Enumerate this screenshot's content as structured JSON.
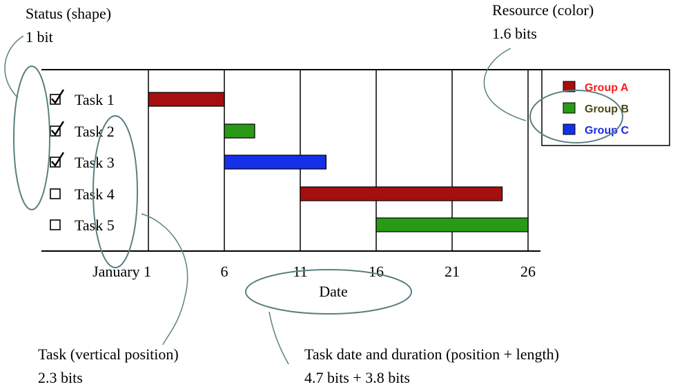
{
  "annotations": {
    "status": {
      "title": "Status (shape)",
      "bits": "1 bit"
    },
    "resource": {
      "title": "Resource (color)",
      "bits": "1.6 bits"
    },
    "task": {
      "title": "Task (vertical position)",
      "bits": "2.3 bits"
    },
    "date": {
      "title": "Task date and duration (position + length)",
      "bits": "4.7 bits + 3.8 bits"
    }
  },
  "chart_data": {
    "type": "gantt",
    "xlabel": "Date",
    "x_ticks": [
      "January 1",
      "6",
      "11",
      "16",
      "21",
      "26"
    ],
    "x_tick_values": [
      1,
      6,
      11,
      16,
      21,
      26
    ],
    "tasks": [
      {
        "label": "Task 1",
        "done": true,
        "start": 1,
        "end": 6,
        "group": "Group A"
      },
      {
        "label": "Task 2",
        "done": true,
        "start": 6,
        "end": 8,
        "group": "Group B"
      },
      {
        "label": "Task 3",
        "done": true,
        "start": 6,
        "end": 12.7,
        "group": "Group C"
      },
      {
        "label": "Task 4",
        "done": false,
        "start": 11,
        "end": 24.3,
        "group": "Group A"
      },
      {
        "label": "Task 5",
        "done": false,
        "start": 16,
        "end": 26,
        "group": "Group B"
      }
    ],
    "legend": [
      {
        "label": "Group A",
        "color": "#a60f0f",
        "text_color": "#ff1a1a"
      },
      {
        "label": "Group B",
        "color": "#2a9a16",
        "text_color": "#4a4a10"
      },
      {
        "label": "Group C",
        "color": "#1530e8",
        "text_color": "#1a2ae0"
      }
    ],
    "grid": true
  }
}
